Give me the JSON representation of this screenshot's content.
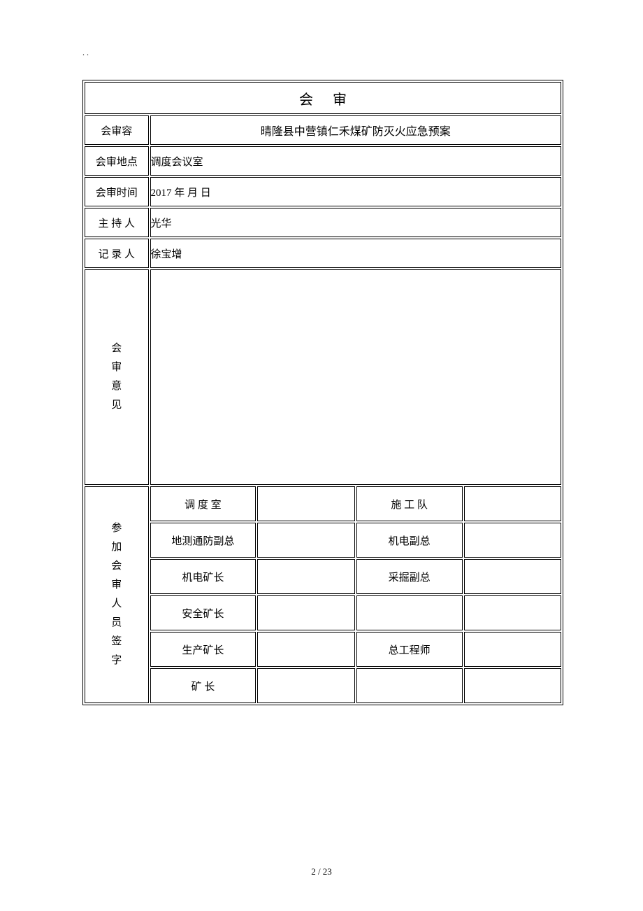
{
  "page_marker": ". .",
  "title": "会审",
  "rows": {
    "review_content": {
      "label": "会审容",
      "value": "晴隆县中营镇仁禾煤矿防灭火应急预案"
    },
    "review_location": {
      "label": "会审地点",
      "value": "调度会议室"
    },
    "review_time": {
      "label": "会审时间",
      "value": "2017 年  月  日"
    },
    "host": {
      "label": "主 持 人",
      "value": "光华"
    },
    "recorder": {
      "label": "记 录 人",
      "value": "徐宝增"
    },
    "opinion": {
      "label_chars": [
        "会",
        "审",
        "意",
        "见"
      ],
      "value": ""
    },
    "signatures": {
      "label_chars": [
        "参",
        "加",
        "会",
        "审",
        "人",
        "员",
        "签",
        "字"
      ],
      "rows": [
        {
          "left_role": "调 度 室",
          "left_value": "",
          "right_role": "施 工 队",
          "right_value": ""
        },
        {
          "left_role": "地测通防副总",
          "left_value": "",
          "right_role": "机电副总",
          "right_value": ""
        },
        {
          "left_role": "机电矿长",
          "left_value": "",
          "right_role": "采掘副总",
          "right_value": ""
        },
        {
          "left_role": "安全矿长",
          "left_value": "",
          "right_role": "",
          "right_value": ""
        },
        {
          "left_role": "生产矿长",
          "left_value": "",
          "right_role": "总工程师",
          "right_value": ""
        },
        {
          "left_role": "矿   长",
          "left_value": "",
          "right_role": "",
          "right_value": ""
        }
      ]
    }
  },
  "page_number": "2  / 23",
  "colors": {
    "background": "#ffffff",
    "text": "#000000",
    "border": "#000000"
  },
  "typography": {
    "title_fontsize": 20,
    "label_fontsize": 15,
    "content_fontsize": 15,
    "page_number_fontsize": 13
  }
}
